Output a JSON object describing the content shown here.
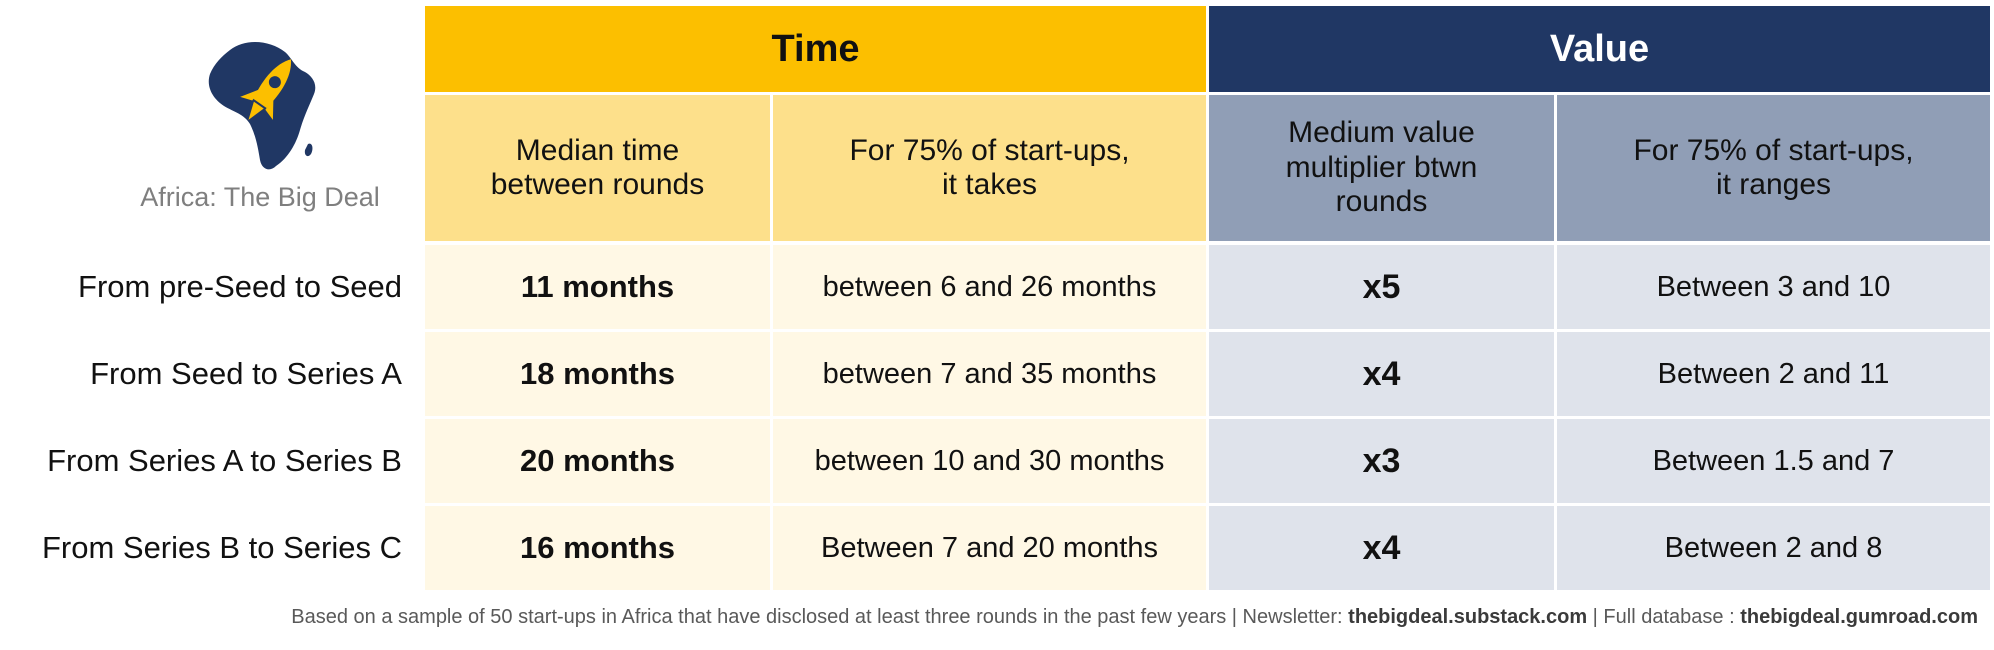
{
  "logo": {
    "icon": "africa-rocket-icon",
    "text": "Africa: The Big Deal"
  },
  "groups": {
    "time": "Time",
    "value": "Value"
  },
  "subheaders": {
    "median_time": "Median time\nbetween rounds",
    "time_75": "For 75% of start-ups,\nit takes",
    "value_multiplier": "Medium value\nmultiplier btwn\nrounds",
    "value_75": "For 75% of start-ups,\nit ranges"
  },
  "rows": [
    {
      "label": "From pre-Seed to Seed",
      "median_time": "11 months",
      "time_range": "between 6 and 26 months",
      "multiplier": "x5",
      "value_range": "Between 3 and 10"
    },
    {
      "label": "From Seed to Series A",
      "median_time": "18 months",
      "time_range": "between 7 and 35 months",
      "multiplier": "x4",
      "value_range": "Between 2 and 11"
    },
    {
      "label": "From Series A to Series B",
      "median_time": "20 months",
      "time_range": "between 10 and 30 months",
      "multiplier": "x3",
      "value_range": "Between 1.5 and 7"
    },
    {
      "label": "From Series B to Series C",
      "median_time": "16 months",
      "time_range": "Between 7 and 20 months",
      "multiplier": "x4",
      "value_range": "Between 2 and 8"
    }
  ],
  "footer": {
    "note": "Based on a sample of 50 start-ups in Africa that have disclosed at least three rounds in the past few years | Newsletter: ",
    "newsletter": "thebigdeal.substack.com",
    "sep": " | Full database : ",
    "database": "thebigdeal.gumroad.com"
  },
  "colors": {
    "time_header": "#fcbf00",
    "time_subheader": "#fde08b",
    "time_cell": "#fff8e5",
    "value_header": "#203764",
    "value_subheader": "#909eb6",
    "value_cell": "#dfe3eb"
  }
}
